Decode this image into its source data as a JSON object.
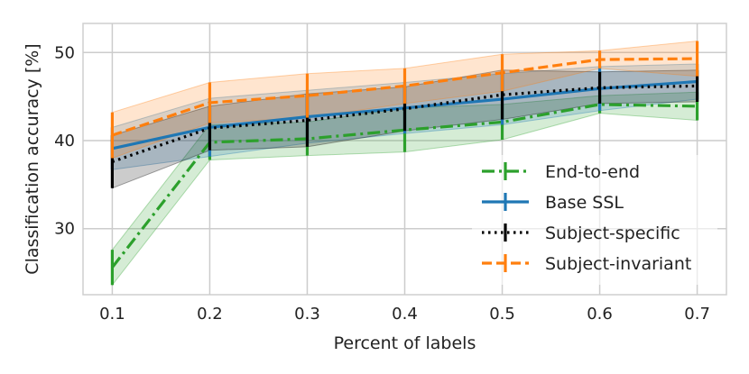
{
  "chart_data": {
    "type": "line",
    "title": "",
    "xlabel": "Percent of labels",
    "ylabel": "Classification accuracy [%]",
    "x": [
      0.1,
      0.2,
      0.3,
      0.4,
      0.5,
      0.6,
      0.7
    ],
    "x_ticks": [
      "0.1",
      "0.2",
      "0.3",
      "0.4",
      "0.5",
      "0.6",
      "0.7"
    ],
    "y_ticks": [
      "30",
      "40",
      "50"
    ],
    "xlim": [
      0.07,
      0.73
    ],
    "ylim": [
      22.5,
      53.3
    ],
    "grid": true,
    "legend_position": "lower-right",
    "series": [
      {
        "name": "End-to-end",
        "color": "#2ca02c",
        "line_style": "dashdot",
        "values": [
          25.6,
          39.8,
          40.2,
          41.2,
          42.1,
          44.1,
          43.9
        ],
        "error": [
          2.0,
          2.0,
          1.9,
          2.5,
          2.0,
          1.0,
          1.6
        ]
      },
      {
        "name": "Base SSL",
        "color": "#1f77b4",
        "line_style": "solid",
        "values": [
          39.1,
          41.5,
          42.7,
          43.7,
          44.7,
          45.9,
          46.7
        ],
        "error": [
          2.4,
          3.3,
          3.0,
          2.9,
          2.9,
          2.5,
          2.0
        ]
      },
      {
        "name": "Subject-specific",
        "color": "#000000",
        "line_style": "dotted",
        "values": [
          37.6,
          41.4,
          42.3,
          43.6,
          45.2,
          46.0,
          46.2
        ],
        "error": [
          3.0,
          2.5,
          3.0,
          2.5,
          2.8,
          1.8,
          1.8
        ]
      },
      {
        "name": "Subject-invariant",
        "color": "#ff7f0e",
        "line_style": "dashed",
        "values": [
          40.6,
          44.3,
          45.1,
          46.2,
          47.7,
          49.2,
          49.3
        ],
        "error": [
          2.6,
          2.3,
          2.5,
          2.0,
          2.1,
          1.0,
          2.0
        ]
      }
    ]
  }
}
